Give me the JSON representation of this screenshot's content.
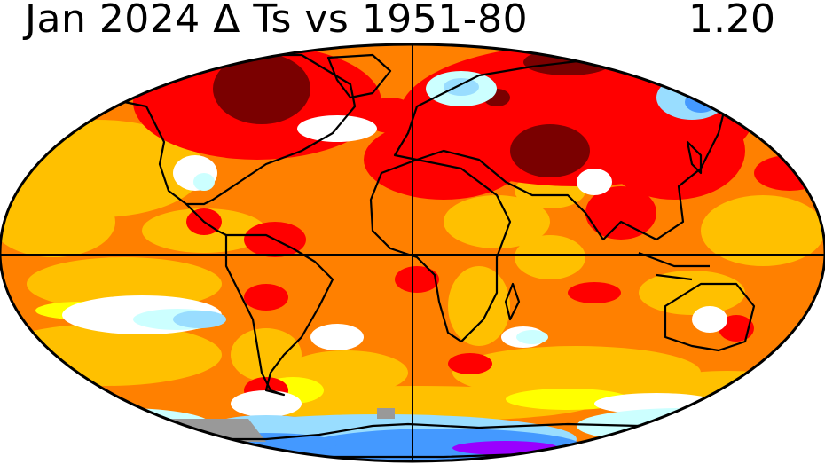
{
  "header": {
    "title": "Jan 2024 Δ Ts vs 1951-80",
    "global_mean_anomaly": "1.20"
  },
  "map": {
    "projection": "robinson",
    "variable": "surface temperature anomaly",
    "colors": {
      "dark_red": "#7a0000",
      "red": "#ff0000",
      "orange": "#ff8000",
      "gold": "#ffc000",
      "yellow": "#ffff00",
      "white": "#ffffff",
      "pale_cyan": "#ccffff",
      "light_blue": "#99ddff",
      "blue": "#4499ff",
      "purple": "#9900ff",
      "no_data": "#999999"
    }
  }
}
